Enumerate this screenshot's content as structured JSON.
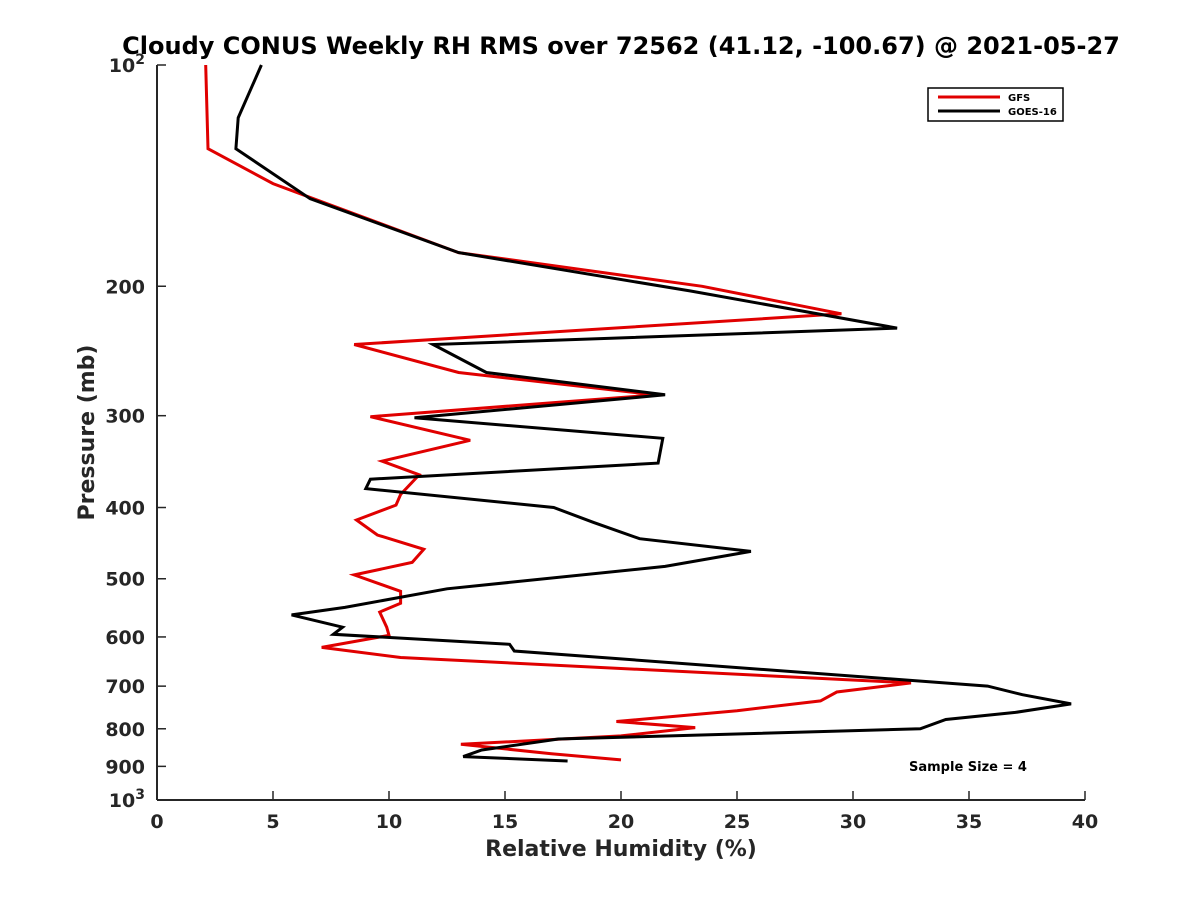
{
  "chart_data": {
    "type": "line",
    "title": "Cloudy CONUS Weekly RH RMS over 72562 (41.12, -100.67) @ 2021-05-27",
    "xlabel": "Relative Humidity (%)",
    "ylabel": "Pressure (mb)",
    "xlim": [
      0,
      40
    ],
    "ylim": [
      100,
      1000
    ],
    "y_scale": "log",
    "y_reversed": true,
    "x_ticks": [
      0,
      5,
      10,
      15,
      20,
      25,
      30,
      35,
      40
    ],
    "y_ticks": [
      {
        "value": 100,
        "label": "10",
        "sup": "2"
      },
      {
        "value": 200,
        "label": "200"
      },
      {
        "value": 300,
        "label": "300"
      },
      {
        "value": 400,
        "label": "400"
      },
      {
        "value": 500,
        "label": "500"
      },
      {
        "value": 600,
        "label": "600"
      },
      {
        "value": 700,
        "label": "700"
      },
      {
        "value": 800,
        "label": "800"
      },
      {
        "value": 900,
        "label": "900"
      },
      {
        "value": 1000,
        "label": "10",
        "sup": "3"
      }
    ],
    "grid": false,
    "legend_position": "top-right",
    "annotation": "Sample Size = 4",
    "series": [
      {
        "name": "GFS",
        "color": "#e00000",
        "x": [
          2.1,
          2.2,
          5.0,
          13.0,
          23.5,
          29.5,
          8.5,
          13.0,
          21.5,
          9.2,
          13.5,
          9.7,
          11.3,
          10.5,
          10.3,
          8.6,
          9.5,
          11.5,
          11.0,
          8.5,
          10.5,
          10.5,
          9.6,
          9.9,
          10.0,
          7.1,
          10.5,
          32.5,
          29.3,
          28.6,
          25.0,
          19.8,
          23.2,
          20.0,
          13.1,
          17.0,
          20.0
        ],
        "y": [
          100,
          130,
          145,
          180,
          200,
          218,
          240,
          262,
          281,
          301,
          324,
          346,
          361,
          384,
          397,
          416,
          436,
          456,
          475,
          494,
          520,
          540,
          555,
          582,
          597,
          620,
          640,
          693,
          713,
          733,
          756,
          782,
          797,
          818,
          840,
          865,
          882
        ]
      },
      {
        "name": "GOES-16",
        "color": "#000000",
        "x": [
          4.5,
          3.5,
          3.4,
          6.6,
          13.0,
          23.0,
          31.9,
          11.9,
          14.2,
          21.9,
          11.1,
          21.8,
          21.6,
          9.2,
          9.0,
          17.1,
          18.8,
          20.8,
          25.6,
          21.9,
          12.5,
          8.1,
          5.8,
          8.0,
          7.6,
          15.2,
          15.4,
          35.8,
          37.3,
          39.4,
          37.0,
          34.0,
          32.9,
          17.3,
          14.0,
          13.2,
          17.7
        ],
        "y": [
          100,
          118,
          130,
          152,
          180,
          203,
          228,
          240,
          262,
          281,
          302,
          322,
          348,
          366,
          377,
          400,
          419,
          441,
          459,
          481,
          516,
          547,
          560,
          582,
          595,
          614,
          627,
          700,
          719,
          740,
          760,
          777,
          800,
          826,
          855,
          873,
          885
        ]
      }
    ]
  }
}
